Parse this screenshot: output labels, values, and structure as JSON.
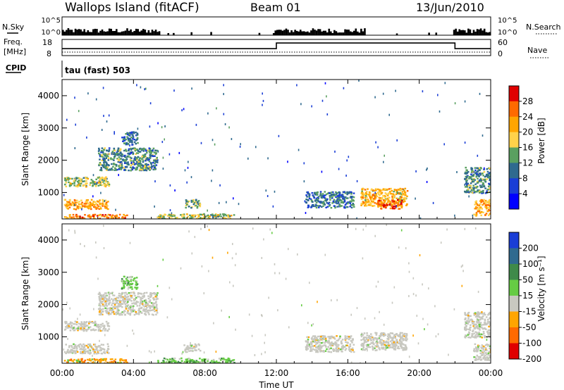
{
  "header": {
    "site": "Wallops Island (fitACF)",
    "beam": "Beam 01",
    "date": "13/Jun/2010"
  },
  "chart_data": [
    {
      "type": "line",
      "panel": "sky-search",
      "left_label": "N.Sky",
      "right_label": "N.Search",
      "left_ticks": [
        "10^5",
        "10^0"
      ],
      "right_ticks": [
        "10^5",
        "10^0"
      ]
    },
    {
      "type": "line",
      "panel": "freq-nave",
      "left_label_line1": "Freq.",
      "left_label_line2": "[MHz]",
      "right_label": "Nave",
      "left_ticks": [
        "18",
        "8"
      ],
      "right_ticks": [
        "60",
        "0"
      ],
      "freq_steps": [
        {
          "from_hour": 0,
          "to_hour": 12,
          "value_mhz": 12.3
        },
        {
          "from_hour": 12,
          "to_hour": 22,
          "value_mhz": 15.8
        },
        {
          "from_hour": 22,
          "to_hour": 24,
          "value_mhz": 12.3
        }
      ]
    },
    {
      "type": "text",
      "panel": "cpid",
      "label": "CPID",
      "value": "tau (fast) 503"
    },
    {
      "type": "heatmap",
      "panel": "power",
      "ylabel": "Slant Range [km]",
      "yticks": [
        "4000",
        "3000",
        "2000",
        "1000"
      ],
      "ylim": [
        180,
        4500
      ],
      "colorbar_label": "Power [dB]",
      "colorbar_ticks": [
        "28",
        "24",
        "20",
        "16",
        "12",
        "8",
        "4"
      ],
      "colorbar_colors": [
        "#e00000",
        "#ff6a00",
        "#ffa500",
        "#ffd24a",
        "#5aa060",
        "#2f6a8f",
        "#1a3ed6",
        "#0000ff"
      ],
      "regions": [
        {
          "t0": 0.1,
          "t1": 2.6,
          "r0": 1200,
          "r1": 1500,
          "level": 16
        },
        {
          "t0": 0.1,
          "t1": 2.6,
          "r0": 500,
          "r1": 800,
          "level": 22
        },
        {
          "t0": 0.1,
          "t1": 3.6,
          "r0": 200,
          "r1": 340,
          "level": 24
        },
        {
          "t0": 2.0,
          "t1": 5.3,
          "r0": 1700,
          "r1": 2400,
          "level": 12
        },
        {
          "t0": 3.3,
          "t1": 4.2,
          "r0": 2500,
          "r1": 2900,
          "level": 10
        },
        {
          "t0": 5.3,
          "t1": 9.6,
          "r0": 200,
          "r1": 360,
          "level": 16
        },
        {
          "t0": 6.8,
          "t1": 7.7,
          "r0": 550,
          "r1": 800,
          "level": 14
        },
        {
          "t0": 13.6,
          "t1": 16.3,
          "r0": 550,
          "r1": 1050,
          "level": 10
        },
        {
          "t0": 16.7,
          "t1": 19.3,
          "r0": 600,
          "r1": 1150,
          "level": 20
        },
        {
          "t0": 17.6,
          "t1": 19.0,
          "r0": 500,
          "r1": 800,
          "level": 26
        },
        {
          "t0": 22.5,
          "t1": 24.0,
          "r0": 1000,
          "r1": 1800,
          "level": 12
        },
        {
          "t0": 23.0,
          "t1": 24.0,
          "r0": 300,
          "r1": 800,
          "level": 22
        }
      ]
    },
    {
      "type": "heatmap",
      "panel": "velocity",
      "ylabel": "Slant Range [km]",
      "yticks": [
        "4000",
        "3000",
        "2000",
        "1000"
      ],
      "ylim": [
        180,
        4500
      ],
      "colorbar_label": "Velocity [m s⁻¹]",
      "colorbar_ticks": [
        "200",
        "100",
        "50",
        "15",
        "-15",
        "-50",
        "-100",
        "-200"
      ],
      "colorbar_colors": [
        "#1a3ed6",
        "#2f6a8f",
        "#3f8a4a",
        "#66cc44",
        "#c8c8c0",
        "#ffa500",
        "#ff6a00",
        "#e00000"
      ],
      "regions": [
        {
          "t0": 0.1,
          "t1": 2.6,
          "r0": 1200,
          "r1": 1500,
          "cls": "ground"
        },
        {
          "t0": 0.1,
          "t1": 2.6,
          "r0": 500,
          "r1": 800,
          "cls": "ground"
        },
        {
          "t0": 0.1,
          "t1": 3.6,
          "r0": 200,
          "r1": 340,
          "cls": "orange"
        },
        {
          "t0": 2.0,
          "t1": 5.3,
          "r0": 1700,
          "r1": 2400,
          "cls": "ground"
        },
        {
          "t0": 3.3,
          "t1": 4.2,
          "r0": 2500,
          "r1": 2900,
          "cls": "green"
        },
        {
          "t0": 5.3,
          "t1": 9.6,
          "r0": 200,
          "r1": 360,
          "cls": "green"
        },
        {
          "t0": 6.8,
          "t1": 7.7,
          "r0": 550,
          "r1": 800,
          "cls": "ground"
        },
        {
          "t0": 13.6,
          "t1": 16.3,
          "r0": 550,
          "r1": 1050,
          "cls": "ground"
        },
        {
          "t0": 16.7,
          "t1": 19.3,
          "r0": 600,
          "r1": 1150,
          "cls": "ground"
        },
        {
          "t0": 22.5,
          "t1": 24.0,
          "r0": 1000,
          "r1": 1800,
          "cls": "ground"
        },
        {
          "t0": 23.0,
          "t1": 24.0,
          "r0": 300,
          "r1": 800,
          "cls": "ground"
        }
      ]
    }
  ],
  "xaxis": {
    "ticks": [
      "00:00",
      "04:00",
      "08:00",
      "12:00",
      "16:00",
      "20:00",
      "00:00"
    ],
    "label": "Time UT",
    "range_hours": [
      0,
      24
    ]
  }
}
